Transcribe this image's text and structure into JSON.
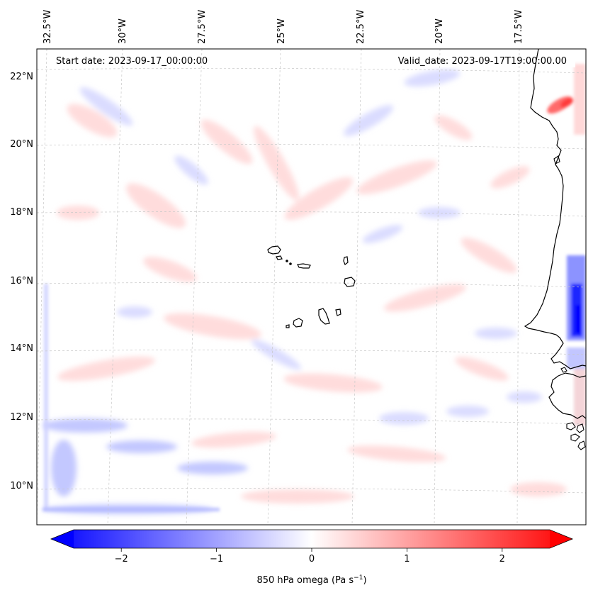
{
  "map": {
    "annotations": {
      "start": "Start date: 2023-09-17_00:00:00",
      "valid": "Valid_date: 2023-09-17T19:00:00.00"
    },
    "lon_labels": [
      "32.5°W",
      "30°W",
      "27.5°W",
      "25°W",
      "22.5°W",
      "20°W",
      "17.5°W"
    ],
    "lat_labels": [
      "22°N",
      "20°N",
      "18°N",
      "16°N",
      "14°N",
      "12°N",
      "10°N"
    ],
    "field_colors": {
      "negative": "#0000ff",
      "zero": "#ffffff",
      "positive": "#ff0000",
      "coastline": "#000000",
      "gridline": "#bfbfbf"
    },
    "features": [
      "Cape Verde islands",
      "West African coastline"
    ]
  },
  "colorbar": {
    "ticks": [
      "−2",
      "−1",
      "0",
      "1",
      "2"
    ],
    "label_main": "850 hPa omega (Pa s",
    "label_sup": "−1",
    "label_end": ")",
    "vmin": -2.5,
    "vmax": 2.5,
    "extend": "both",
    "colors": {
      "low": "#0000ff",
      "mid": "#ffffff",
      "high": "#ff0000"
    }
  }
}
